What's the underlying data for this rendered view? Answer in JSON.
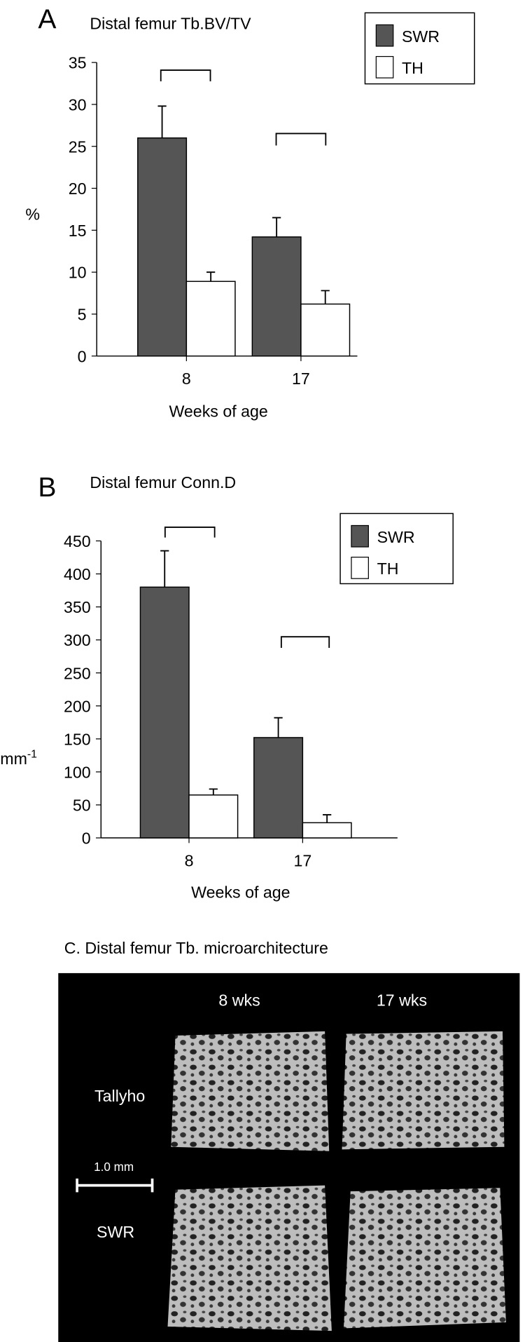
{
  "chart_data": [
    {
      "type": "bar",
      "label": "A",
      "title": "Distal femur Tb.BV/TV",
      "y_label": "%",
      "x_label": "Weeks of age",
      "categories": [
        "8",
        "17"
      ],
      "series": [
        {
          "name": "SWR",
          "color": "#555555",
          "values": [
            26.0,
            14.2
          ],
          "errors": [
            3.8,
            2.3
          ]
        },
        {
          "name": "TH",
          "color": "#ffffff",
          "values": [
            8.9,
            6.2
          ],
          "errors": [
            1.1,
            1.6
          ]
        }
      ],
      "ylim": [
        0,
        35
      ],
      "yticks": [
        0,
        5,
        10,
        15,
        20,
        25,
        30,
        35
      ],
      "legend": "upper right"
    },
    {
      "type": "bar",
      "label": "B",
      "title": "Distal femur Conn.D",
      "y_label": "mm",
      "y_label_sup": "-1",
      "x_label": "Weeks of age",
      "categories": [
        "8",
        "17"
      ],
      "series": [
        {
          "name": "SWR",
          "color": "#555555",
          "values": [
            380,
            152
          ],
          "errors": [
            55,
            30
          ]
        },
        {
          "name": "TH",
          "color": "#ffffff",
          "values": [
            65,
            23
          ],
          "errors": [
            9,
            12
          ]
        }
      ],
      "ylim": [
        0,
        450
      ],
      "yticks": [
        0,
        50,
        100,
        150,
        200,
        250,
        300,
        350,
        400,
        450
      ],
      "legend": "upper right"
    }
  ],
  "panel_c": {
    "title": "C. Distal femur Tb. microarchitecture",
    "columns": [
      "8 wks",
      "17 wks"
    ],
    "rows": [
      "Tallyho",
      "SWR"
    ],
    "scale_bar": "1.0 mm"
  }
}
